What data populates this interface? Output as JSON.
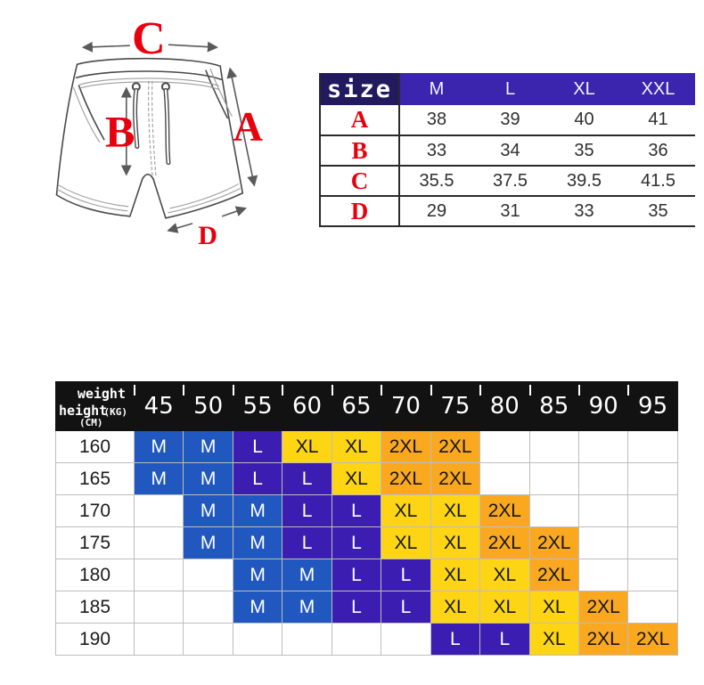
{
  "background": "#ffffff",
  "diagram": {
    "labels": {
      "waist": "C",
      "side_length": "A",
      "rise": "B",
      "leg_opening": "D"
    },
    "label_color": "#e8000d",
    "line_color": "#4a4a4a",
    "arrow_color": "#5a5a5a"
  },
  "size_table": {
    "corner_label": "size",
    "columns": [
      "M",
      "L",
      "XL",
      "XXL"
    ],
    "rows": [
      {
        "label": "A",
        "values": [
          "38",
          "39",
          "40",
          "41"
        ]
      },
      {
        "label": "B",
        "values": [
          "33",
          "34",
          "35",
          "36"
        ]
      },
      {
        "label": "C",
        "values": [
          "35.5",
          "37.5",
          "39.5",
          "41.5"
        ]
      },
      {
        "label": "D",
        "values": [
          "29",
          "31",
          "33",
          "35"
        ]
      }
    ],
    "header_bg": "#3b24ae",
    "corner_bg": "#211a5e",
    "row_label_color": "#e8000d"
  },
  "matrix_table": {
    "corner": {
      "top_label": "weight",
      "top_unit": "(KG)",
      "side_label": "height",
      "side_unit": "(CM)"
    },
    "weights": [
      "45",
      "50",
      "55",
      "60",
      "65",
      "70",
      "75",
      "80",
      "85",
      "90",
      "95"
    ],
    "rows": [
      {
        "height": "160",
        "sizes": [
          "M",
          "M",
          "L",
          "XL",
          "XL",
          "2XL",
          "2XL",
          "",
          "",
          "",
          ""
        ]
      },
      {
        "height": "165",
        "sizes": [
          "M",
          "M",
          "L",
          "L",
          "XL",
          "2XL",
          "2XL",
          "",
          "",
          "",
          ""
        ]
      },
      {
        "height": "170",
        "sizes": [
          "",
          "M",
          "M",
          "L",
          "L",
          "XL",
          "XL",
          "2XL",
          "",
          "",
          ""
        ]
      },
      {
        "height": "175",
        "sizes": [
          "",
          "M",
          "M",
          "L",
          "L",
          "XL",
          "XL",
          "2XL",
          "2XL",
          "",
          ""
        ]
      },
      {
        "height": "180",
        "sizes": [
          "",
          "",
          "M",
          "M",
          "L",
          "L",
          "XL",
          "XL",
          "2XL",
          "",
          ""
        ]
      },
      {
        "height": "185",
        "sizes": [
          "",
          "",
          "M",
          "M",
          "L",
          "L",
          "XL",
          "XL",
          "XL",
          "2XL",
          ""
        ]
      },
      {
        "height": "190",
        "sizes": [
          "",
          "",
          "",
          "",
          "",
          "",
          "L",
          "L",
          "XL",
          "2XL",
          "2XL"
        ]
      }
    ],
    "size_colors": {
      "M": {
        "bg": "#2058c0",
        "fg": "#ffffff"
      },
      "L": {
        "bg": "#3c1db1",
        "fg": "#ffffff"
      },
      "XL": {
        "bg": "#fed515",
        "fg": "#151515"
      },
      "2XL": {
        "bg": "#fba821",
        "fg": "#151515"
      }
    },
    "header_bg": "#121212"
  }
}
